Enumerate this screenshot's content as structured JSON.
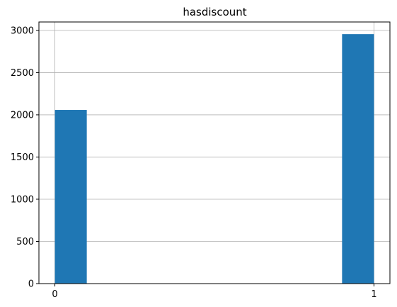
{
  "chart_data": {
    "type": "bar",
    "title": "hasdiscount",
    "xlabel": "",
    "ylabel": "",
    "xlim": [
      -0.05,
      1.05
    ],
    "ylim": [
      0,
      3100
    ],
    "x_ticks": [
      0,
      1
    ],
    "y_ticks": [
      0,
      500,
      1000,
      1500,
      2000,
      2500,
      3000
    ],
    "grid": true,
    "bins": [
      {
        "x0": 0.0,
        "x1": 0.1,
        "value": 2058
      },
      {
        "x0": 0.9,
        "x1": 1.0,
        "value": 2956
      }
    ],
    "bar_color": "#1f77b4",
    "grid_color": "#b0b0b0"
  }
}
